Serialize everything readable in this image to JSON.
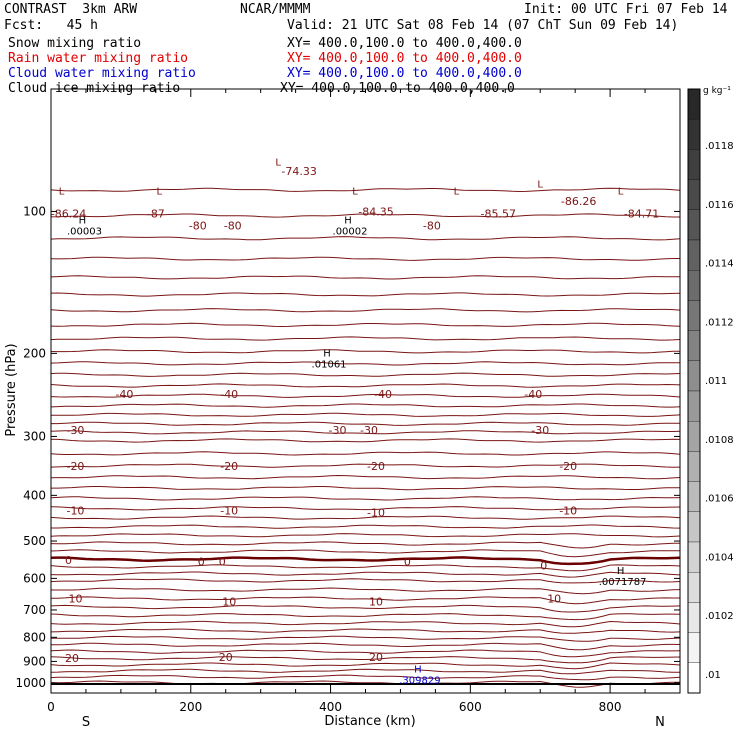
{
  "header": {
    "title": "CONTRAST  3km ARW",
    "center": "NCAR/MMMM",
    "init": "Init: 00 UTC Fri 07 Feb 14",
    "fcst": "Fcst:   45 h",
    "valid": "Valid: 21 UTC Sat 08 Feb 14 (07 ChT Sun 09 Feb 14)"
  },
  "legend": [
    {
      "name": "Snow mixing ratio",
      "xy": "XY= 400.0,100.0 to 400.0,400.0",
      "color": "#000000"
    },
    {
      "name": "Rain water mixing ratio",
      "xy": "XY= 400.0,100.0 to 400.0,400.0",
      "color": "#e00000"
    },
    {
      "name": "Cloud water mixing ratio",
      "xy": "XY= 400.0,100.0 to 400.0,400.0",
      "color": "#0000d0"
    },
    {
      "name": "Cloud ice mixing ratio",
      "xy": "XY= 400.0,100.0 to 400.0,400.0",
      "color": "#000000"
    }
  ],
  "chart_data": {
    "type": "line",
    "xlabel": "Distance (km)",
    "ylabel": "Pressure (hPa)",
    "xlim": [
      0,
      900
    ],
    "ylim": [
      1050,
      55
    ],
    "yscale": "log",
    "xticks": [
      0,
      200,
      400,
      600,
      800
    ],
    "yticks": [
      100,
      200,
      300,
      400,
      500,
      600,
      700,
      800,
      900,
      1000
    ],
    "x_end_labels": {
      "left": "S",
      "right": "N"
    },
    "colorbar": {
      "unit": "g kg⁻¹",
      "ticks": [
        ".0118",
        ".0116",
        ".0114",
        ".0112",
        ".011",
        ".0108",
        ".0106",
        ".0104",
        ".0102",
        ".01"
      ]
    },
    "contour_labels": [
      {
        "text": "-74.33",
        "x": 355,
        "p": 82
      },
      {
        "text": "-86.24",
        "x": 25,
        "p": 101
      },
      {
        "text": "-87",
        "x": 150,
        "p": 101
      },
      {
        "text": "-84.35",
        "x": 465,
        "p": 100
      },
      {
        "text": "-85.57",
        "x": 640,
        "p": 101
      },
      {
        "text": "-86.26",
        "x": 755,
        "p": 95
      },
      {
        "text": "-84.71",
        "x": 845,
        "p": 101
      },
      {
        "text": "-80",
        "x": 210,
        "p": 107
      },
      {
        "text": "-80",
        "x": 260,
        "p": 107
      },
      {
        "text": "-80",
        "x": 545,
        "p": 107
      },
      {
        "text": "-40",
        "x": 105,
        "p": 244
      },
      {
        "text": "-40",
        "x": 255,
        "p": 244
      },
      {
        "text": "-40",
        "x": 475,
        "p": 244
      },
      {
        "text": "-40",
        "x": 690,
        "p": 244
      },
      {
        "text": "-30",
        "x": 35,
        "p": 291
      },
      {
        "text": "-30",
        "x": 410,
        "p": 291
      },
      {
        "text": "-30",
        "x": 455,
        "p": 291
      },
      {
        "text": "-30",
        "x": 700,
        "p": 291
      },
      {
        "text": "-20",
        "x": 35,
        "p": 347
      },
      {
        "text": "-20",
        "x": 255,
        "p": 347
      },
      {
        "text": "-20",
        "x": 465,
        "p": 347
      },
      {
        "text": "-20",
        "x": 740,
        "p": 347
      },
      {
        "text": "-10",
        "x": 35,
        "p": 431
      },
      {
        "text": "-10",
        "x": 255,
        "p": 431
      },
      {
        "text": "-10",
        "x": 465,
        "p": 435
      },
      {
        "text": "-10",
        "x": 740,
        "p": 431
      },
      {
        "text": "0",
        "x": 25,
        "p": 548
      },
      {
        "text": "0",
        "x": 215,
        "p": 552
      },
      {
        "text": "0",
        "x": 245,
        "p": 552
      },
      {
        "text": "0",
        "x": 510,
        "p": 552
      },
      {
        "text": "0",
        "x": 705,
        "p": 563
      },
      {
        "text": "10",
        "x": 35,
        "p": 662
      },
      {
        "text": "10",
        "x": 255,
        "p": 672
      },
      {
        "text": "10",
        "x": 465,
        "p": 672
      },
      {
        "text": "10",
        "x": 720,
        "p": 662
      },
      {
        "text": "20",
        "x": 30,
        "p": 885
      },
      {
        "text": "20",
        "x": 250,
        "p": 880
      },
      {
        "text": "20",
        "x": 465,
        "p": 880
      }
    ],
    "extrema": [
      {
        "mark": "L",
        "x": 15,
        "p": 92
      },
      {
        "mark": "H",
        "x": 45,
        "p": 106,
        "value": ".00003"
      },
      {
        "mark": "L",
        "x": 155,
        "p": 92
      },
      {
        "mark": "L",
        "x": 325,
        "p": 80
      },
      {
        "mark": "H",
        "x": 425,
        "p": 106,
        "value": ".00002"
      },
      {
        "mark": "L",
        "x": 435,
        "p": 92
      },
      {
        "mark": "L",
        "x": 580,
        "p": 92
      },
      {
        "mark": "L",
        "x": 700,
        "p": 89
      },
      {
        "mark": "L",
        "x": 815,
        "p": 92
      },
      {
        "mark": "H",
        "x": 395,
        "p": 203,
        "value": ".01061"
      },
      {
        "mark": "H",
        "x": 815,
        "p": 587,
        "value": ".0071787"
      },
      {
        "mark": "H",
        "x": 525,
        "p": 950,
        "value": ".309829",
        "color": "#0000d0"
      }
    ]
  }
}
